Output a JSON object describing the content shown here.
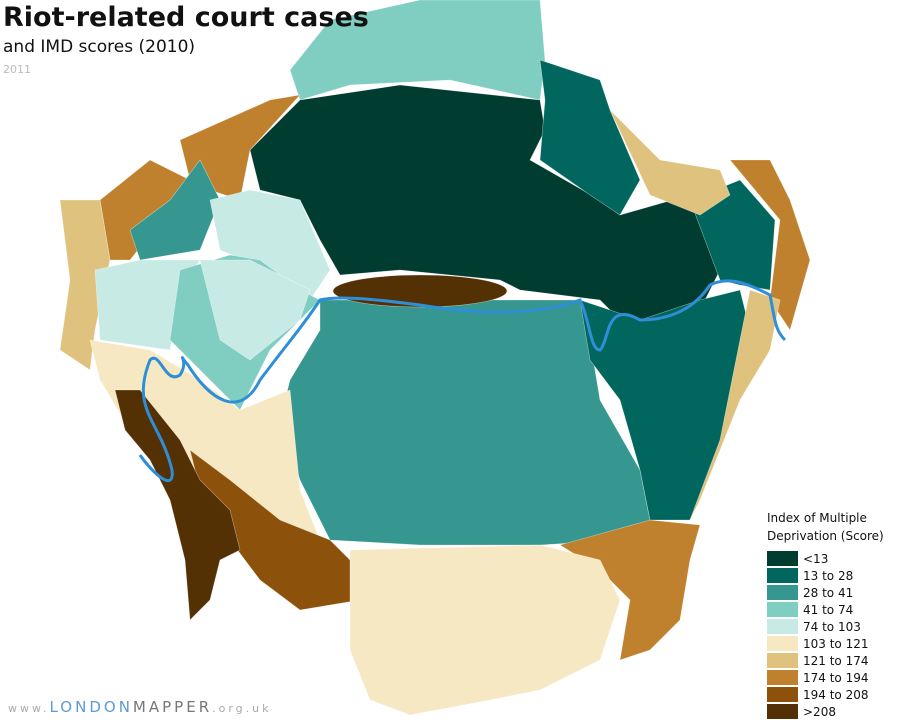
{
  "title": [
    "Riot-related court cases",
    "and IMD scores (2010)"
  ],
  "subtitle": "2011",
  "legend": {
    "title": [
      "Index of Multiple",
      "Deprivation (Score)"
    ],
    "items": [
      {
        "label": "<13",
        "color": "#003c30"
      },
      {
        "label": "13 to 28",
        "color": "#01665e"
      },
      {
        "label": "28 to 41",
        "color": "#35978f"
      },
      {
        "label": "41 to 74",
        "color": "#80cdc1"
      },
      {
        "label": "74 to 103",
        "color": "#c7eae5"
      },
      {
        "label": "103 to 121",
        "color": "#f6e8c3"
      },
      {
        "label": "121 to 174",
        "color": "#dfc27d"
      },
      {
        "label": "174 to 194",
        "color": "#bf812d"
      },
      {
        "label": "194 to 208",
        "color": "#8c510a"
      },
      {
        "label": ">208",
        "color": "#543005"
      }
    ]
  },
  "footer": [
    {
      "text": "www.",
      "color": "#aaaaaa"
    },
    {
      "text": "LONDON",
      "color": "#5b9bd5"
    },
    {
      "text": "MAPPER",
      "color": "#777777"
    },
    {
      "text": ".org.uk",
      "color": "#aaaaaa"
    }
  ]
}
